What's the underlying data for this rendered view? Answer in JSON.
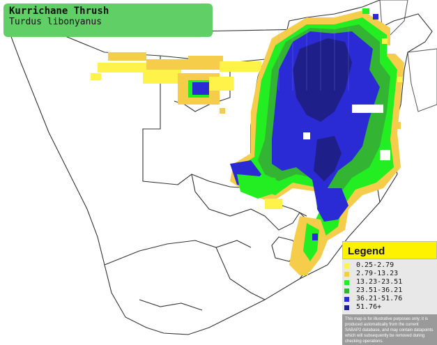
{
  "title": {
    "common_name": "Kurrichane Thrush",
    "scientific_name": "Turdus libonyanus",
    "box_color": "#5fcf66"
  },
  "legend": {
    "heading": "Legend",
    "heading_color": "#fff200",
    "classes": [
      {
        "label": "0.25-2.79",
        "color": "#fff34a"
      },
      {
        "label": "2.79-13.23",
        "color": "#f5cd4a"
      },
      {
        "label": "13.23-23.51",
        "color": "#22ee22"
      },
      {
        "label": "23.51-36.21",
        "color": "#33b533"
      },
      {
        "label": "36.21-51.76",
        "color": "#2b2bd6"
      },
      {
        "label": "51.76+",
        "color": "#1f1f8a"
      }
    ],
    "disclaimer": "This map is for illustrative purposes only; it is produced automatically from the current SABAP2 database, and may contain datapoints which will subsequently be removed during checking operations."
  }
}
